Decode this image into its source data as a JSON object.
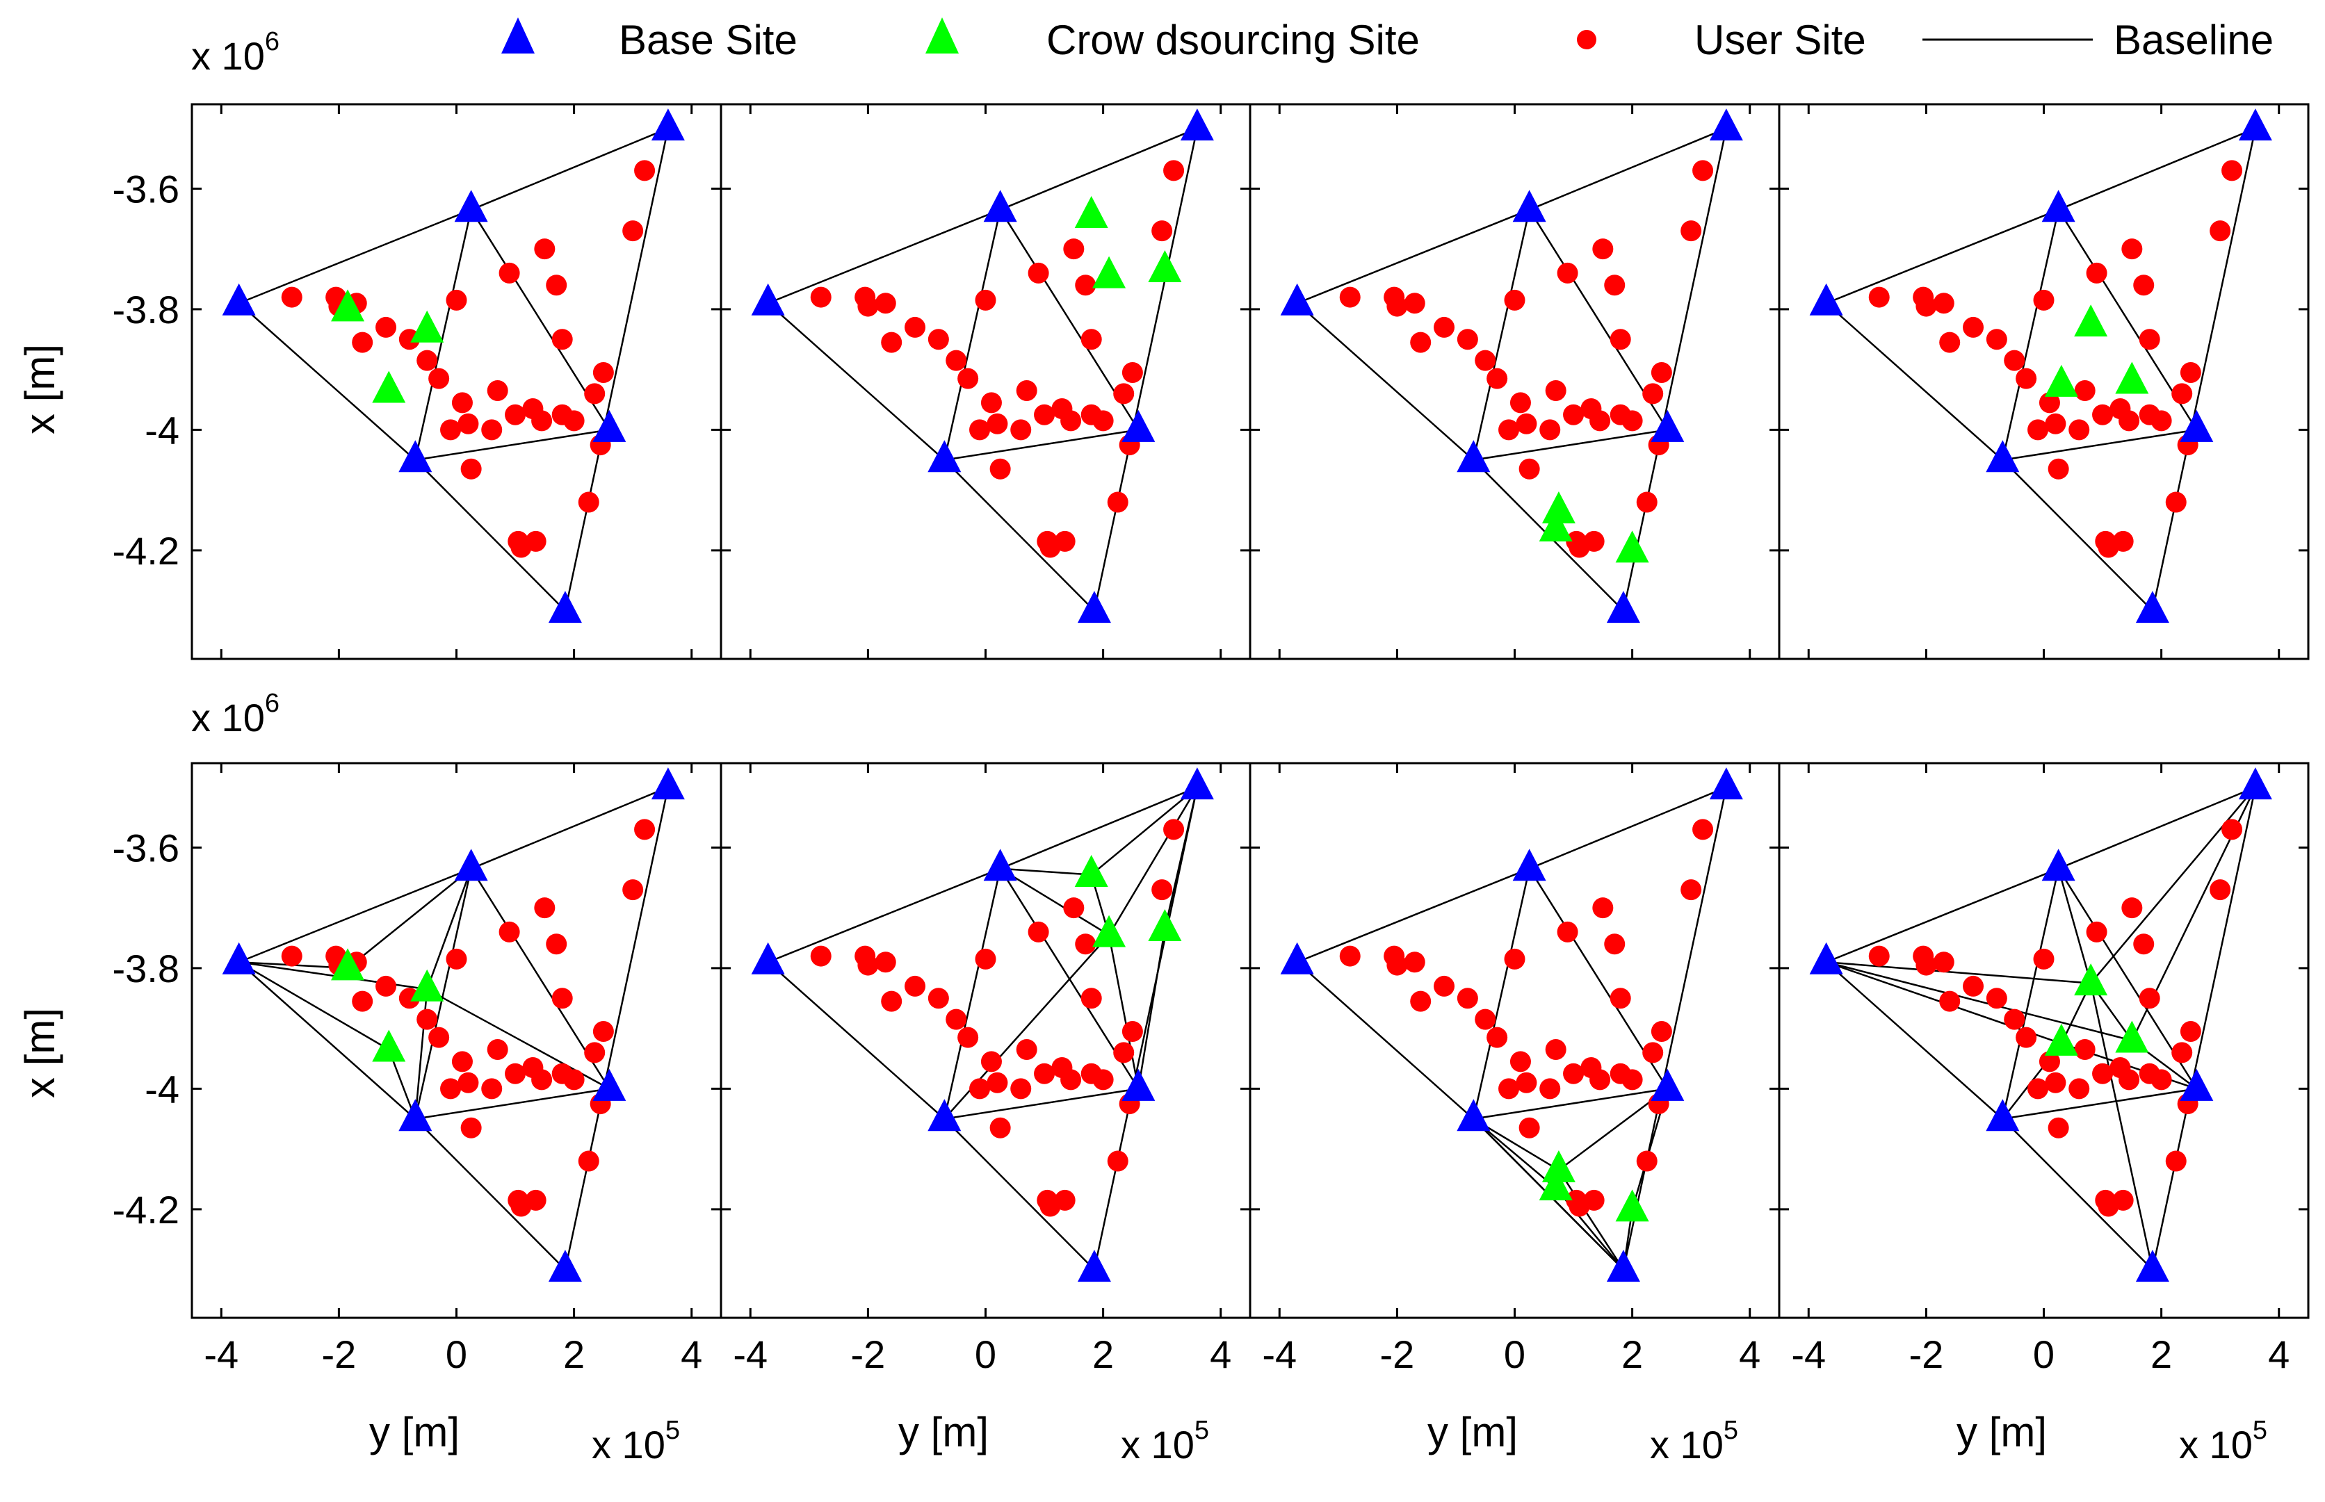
{
  "legend": [
    {
      "label": "Base Site",
      "marker": "triangle",
      "color": "#0000ff"
    },
    {
      "label": "Crow dsourcing Site",
      "marker": "triangle",
      "color": "#00ff00"
    },
    {
      "label": "User Site",
      "marker": "circle",
      "color": "#ff0000"
    },
    {
      "label": "Baseline",
      "marker": "line",
      "color": "#000000"
    }
  ],
  "colors": {
    "base": "#0000ff",
    "crowd": "#00ff00",
    "user": "#ff0000",
    "baseline": "#000000",
    "axes": "#000000"
  },
  "chart_data": {
    "type": "scatter",
    "layout": "2 rows x 4 columns, shared axes",
    "xlabel": "y [m]",
    "ylabel": "x [m]",
    "x_multiplier": {
      "base": "x 10",
      "exp": "5"
    },
    "y_multiplier": {
      "base": "x 10",
      "exp": "6"
    },
    "xlim": [
      -4.5,
      4.5
    ],
    "ylim": [
      -4.38,
      -3.46
    ],
    "xticks": [
      -4,
      -2,
      0,
      2,
      4
    ],
    "yticks": [
      -3.6,
      -3.8,
      -4,
      -4.2
    ],
    "xtick_labels": [
      "-4",
      "-2",
      "0",
      "2",
      "4"
    ],
    "ytick_labels": [
      "-3.6",
      "-3.8",
      "-4",
      "-4.2"
    ],
    "base_sites": [
      [
        -3.7,
        -3.79
      ],
      [
        0.25,
        -3.635
      ],
      [
        3.6,
        -3.5
      ],
      [
        -0.7,
        -4.05
      ],
      [
        2.6,
        -4.0
      ],
      [
        1.85,
        -4.3
      ]
    ],
    "user_sites": [
      [
        -2.8,
        -3.78
      ],
      [
        -2.05,
        -3.78
      ],
      [
        -2.0,
        -3.795
      ],
      [
        -1.7,
        -3.79
      ],
      [
        -1.6,
        -3.855
      ],
      [
        -1.2,
        -3.83
      ],
      [
        -0.8,
        -3.85
      ],
      [
        -0.5,
        -3.885
      ],
      [
        -0.3,
        -3.915
      ],
      [
        -0.1,
        -4.0
      ],
      [
        0.0,
        -3.785
      ],
      [
        0.1,
        -3.955
      ],
      [
        0.2,
        -3.99
      ],
      [
        0.25,
        -4.065
      ],
      [
        0.6,
        -4.0
      ],
      [
        0.7,
        -3.935
      ],
      [
        0.9,
        -3.74
      ],
      [
        1.0,
        -3.975
      ],
      [
        1.05,
        -4.185
      ],
      [
        1.1,
        -4.195
      ],
      [
        1.3,
        -3.965
      ],
      [
        1.35,
        -4.185
      ],
      [
        1.45,
        -3.985
      ],
      [
        1.5,
        -3.7
      ],
      [
        1.7,
        -3.76
      ],
      [
        1.8,
        -3.975
      ],
      [
        1.8,
        -3.85
      ],
      [
        2.0,
        -3.985
      ],
      [
        2.35,
        -3.94
      ],
      [
        2.45,
        -4.025
      ],
      [
        2.5,
        -3.905
      ],
      [
        2.25,
        -4.12
      ],
      [
        3.0,
        -3.67
      ],
      [
        3.2,
        -3.57
      ]
    ],
    "panels": [
      {
        "id": "top-1",
        "crowd_sites": [
          [
            -1.85,
            -3.8
          ],
          [
            -0.5,
            -3.835
          ],
          [
            -1.15,
            -3.935
          ]
        ],
        "extra_baselines": []
      },
      {
        "id": "top-2",
        "crowd_sites": [
          [
            1.8,
            -3.645
          ],
          [
            2.1,
            -3.745
          ],
          [
            3.05,
            -3.735
          ]
        ],
        "extra_baselines": []
      },
      {
        "id": "top-3",
        "crowd_sites": [
          [
            0.75,
            -4.135
          ],
          [
            0.7,
            -4.165
          ],
          [
            2.0,
            -4.2
          ]
        ],
        "extra_baselines": []
      },
      {
        "id": "top-4",
        "crowd_sites": [
          [
            0.8,
            -3.825
          ],
          [
            0.3,
            -3.925
          ],
          [
            1.5,
            -3.92
          ]
        ],
        "extra_baselines": []
      },
      {
        "id": "bottom-1",
        "crowd_sites": [
          [
            -1.85,
            -3.8
          ],
          [
            -0.5,
            -3.835
          ],
          [
            -1.15,
            -3.935
          ]
        ],
        "extra_baselines": [
          [
            -3.7,
            -3.79,
            -1.85,
            -3.8
          ],
          [
            -3.7,
            -3.79,
            -0.5,
            -3.835
          ],
          [
            -3.7,
            -3.79,
            -1.15,
            -3.935
          ],
          [
            0.25,
            -3.635,
            -1.85,
            -3.8
          ],
          [
            0.25,
            -3.635,
            -0.5,
            -3.835
          ],
          [
            -0.7,
            -4.05,
            -1.15,
            -3.935
          ],
          [
            -0.7,
            -4.05,
            -0.5,
            -3.835
          ],
          [
            2.6,
            -4.0,
            -0.5,
            -3.835
          ]
        ]
      },
      {
        "id": "bottom-2",
        "crowd_sites": [
          [
            1.8,
            -3.645
          ],
          [
            2.1,
            -3.745
          ],
          [
            3.05,
            -3.735
          ]
        ],
        "extra_baselines": [
          [
            0.25,
            -3.635,
            1.8,
            -3.645
          ],
          [
            3.6,
            -3.5,
            1.8,
            -3.645
          ],
          [
            3.6,
            -3.5,
            2.1,
            -3.745
          ],
          [
            3.6,
            -3.5,
            3.05,
            -3.735
          ],
          [
            0.25,
            -3.635,
            2.1,
            -3.745
          ],
          [
            -0.7,
            -4.05,
            2.1,
            -3.745
          ],
          [
            2.6,
            -4.0,
            3.05,
            -3.735
          ],
          [
            2.6,
            -4.0,
            2.1,
            -3.745
          ],
          [
            1.8,
            -3.645,
            2.1,
            -3.745
          ]
        ]
      },
      {
        "id": "bottom-3",
        "crowd_sites": [
          [
            0.75,
            -4.135
          ],
          [
            0.7,
            -4.165
          ],
          [
            2.0,
            -4.2
          ]
        ],
        "extra_baselines": [
          [
            -0.7,
            -4.05,
            0.75,
            -4.135
          ],
          [
            -0.7,
            -4.05,
            0.7,
            -4.165
          ],
          [
            1.85,
            -4.3,
            0.75,
            -4.135
          ],
          [
            1.85,
            -4.3,
            0.7,
            -4.165
          ],
          [
            1.85,
            -4.3,
            2.0,
            -4.2
          ],
          [
            2.6,
            -4.0,
            0.75,
            -4.135
          ],
          [
            2.6,
            -4.0,
            2.0,
            -4.2
          ],
          [
            -0.7,
            -4.05,
            1.85,
            -4.3
          ]
        ]
      },
      {
        "id": "bottom-4",
        "crowd_sites": [
          [
            0.8,
            -3.825
          ],
          [
            0.3,
            -3.925
          ],
          [
            1.5,
            -3.92
          ]
        ],
        "extra_baselines": [
          [
            -3.7,
            -3.79,
            0.8,
            -3.825
          ],
          [
            -3.7,
            -3.79,
            0.3,
            -3.925
          ],
          [
            -3.7,
            -3.79,
            1.5,
            -3.92
          ],
          [
            0.25,
            -3.635,
            0.8,
            -3.825
          ],
          [
            3.6,
            -3.5,
            0.8,
            -3.825
          ],
          [
            3.6,
            -3.5,
            1.5,
            -3.92
          ],
          [
            -0.7,
            -4.05,
            0.3,
            -3.925
          ],
          [
            2.6,
            -4.0,
            1.5,
            -3.92
          ],
          [
            2.6,
            -4.0,
            0.3,
            -3.925
          ],
          [
            1.85,
            -4.3,
            0.8,
            -3.825
          ],
          [
            0.8,
            -3.825,
            0.3,
            -3.925
          ],
          [
            0.8,
            -3.825,
            1.5,
            -3.92
          ]
        ]
      }
    ],
    "triangulation": [
      [
        0,
        1
      ],
      [
        1,
        2
      ],
      [
        0,
        3
      ],
      [
        2,
        5
      ],
      [
        3,
        5
      ],
      [
        1,
        3
      ],
      [
        1,
        4
      ],
      [
        3,
        4
      ]
    ]
  }
}
